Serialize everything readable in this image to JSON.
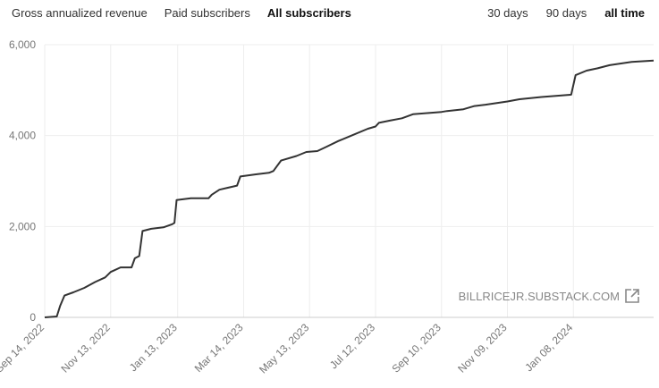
{
  "tabs": {
    "metric": [
      {
        "label": "Gross annualized revenue",
        "active": false
      },
      {
        "label": "Paid subscribers",
        "active": false
      },
      {
        "label": "All subscribers",
        "active": true
      }
    ],
    "range": [
      {
        "label": "30 days",
        "active": false
      },
      {
        "label": "90 days",
        "active": false
      },
      {
        "label": "all time",
        "active": true
      }
    ]
  },
  "watermark": {
    "text": "BILLRICEJR.SUBSTACK.COM",
    "icon": "external-link-icon"
  },
  "colors": {
    "line": "#333333",
    "grid": "#eeeeee",
    "axis": "#cccccc"
  },
  "chart_data": {
    "type": "line",
    "title": "",
    "xlabel": "",
    "ylabel": "",
    "x_tick_labels": [
      "Sep 14, 2022",
      "Nov 13, 2022",
      "Jan 13, 2023",
      "Mar 14, 2023",
      "May 13, 2023",
      "Jul 12, 2023",
      "Sep 10, 2023",
      "Nov 09, 2023",
      "Jan 08, 2024"
    ],
    "y_tick_labels": [
      "0",
      "2,000",
      "4,000",
      "6,000"
    ],
    "xlim": [
      "2022-09-14",
      "2024-03-21"
    ],
    "ylim": [
      0,
      6000
    ],
    "grid": true,
    "series": [
      {
        "x": [
          "2022-09-14",
          "2022-09-25",
          "2022-09-28",
          "2022-10-02",
          "2022-10-10",
          "2022-10-20",
          "2022-10-30",
          "2022-11-08",
          "2022-11-13",
          "2022-11-22",
          "2022-12-02",
          "2022-12-05",
          "2022-12-09",
          "2022-12-12",
          "2022-12-20",
          "2022-12-31",
          "2023-01-08",
          "2023-01-10",
          "2023-01-12",
          "2023-01-25",
          "2023-02-10",
          "2023-02-13",
          "2023-02-20",
          "2023-03-08",
          "2023-03-11",
          "2023-03-26",
          "2023-04-06",
          "2023-04-10",
          "2023-04-17",
          "2023-05-01",
          "2023-05-10",
          "2023-05-20",
          "2023-05-28",
          "2023-06-08",
          "2023-06-20",
          "2023-07-05",
          "2023-07-12",
          "2023-07-15",
          "2023-07-25",
          "2023-08-05",
          "2023-08-15",
          "2023-09-10",
          "2023-09-15",
          "2023-09-30",
          "2023-10-10",
          "2023-10-20",
          "2023-11-09",
          "2023-11-20",
          "2023-12-10",
          "2023-12-27",
          "2024-01-06",
          "2024-01-10",
          "2024-01-20",
          "2024-01-30",
          "2024-02-10",
          "2024-03-01",
          "2024-03-21"
        ],
        "values": [
          0,
          20,
          250,
          480,
          550,
          650,
          780,
          880,
          1000,
          1100,
          1100,
          1300,
          1350,
          1900,
          1950,
          1980,
          2050,
          2080,
          2580,
          2620,
          2620,
          2700,
          2810,
          2900,
          3100,
          3150,
          3180,
          3220,
          3450,
          3550,
          3640,
          3660,
          3750,
          3880,
          4000,
          4150,
          4200,
          4280,
          4330,
          4380,
          4470,
          4520,
          4540,
          4580,
          4650,
          4680,
          4750,
          4800,
          4850,
          4880,
          4900,
          5330,
          5430,
          5480,
          5550,
          5620,
          5650
        ]
      }
    ]
  }
}
